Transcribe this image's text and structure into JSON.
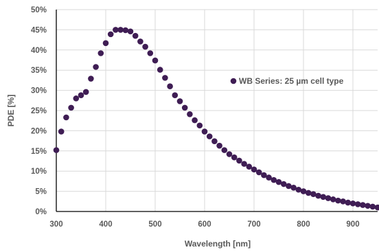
{
  "chart_data": {
    "type": "scatter",
    "xlabel": "Wavelength [nm]",
    "ylabel": "PDE [%]",
    "xlim": [
      300,
      950
    ],
    "ylim": [
      0,
      50
    ],
    "x_ticks": [
      300,
      400,
      500,
      600,
      700,
      800,
      900
    ],
    "x_tick_labels": [
      "300",
      "400",
      "500",
      "600",
      "700",
      "800",
      "900"
    ],
    "y_ticks": [
      0,
      5,
      10,
      15,
      20,
      25,
      30,
      35,
      40,
      45,
      50
    ],
    "y_tick_labels": [
      "0%",
      "5%",
      "10%",
      "15%",
      "20%",
      "25%",
      "30%",
      "35%",
      "40%",
      "45%",
      "50%"
    ],
    "grid": "vertical and horizontal",
    "legend_position": "right-middle",
    "series": [
      {
        "name": "WB Series: 25 µm cell type",
        "color": "#3f1d54",
        "x": [
          300,
          310,
          320,
          330,
          340,
          350,
          360,
          370,
          380,
          390,
          400,
          410,
          420,
          430,
          440,
          450,
          460,
          470,
          480,
          490,
          500,
          510,
          520,
          530,
          540,
          550,
          560,
          570,
          580,
          590,
          600,
          610,
          620,
          630,
          640,
          650,
          660,
          670,
          680,
          690,
          700,
          710,
          720,
          730,
          740,
          750,
          760,
          770,
          780,
          790,
          800,
          810,
          820,
          830,
          840,
          850,
          860,
          870,
          880,
          890,
          900,
          910,
          920,
          930,
          940,
          950
        ],
        "y": [
          15.2,
          19.8,
          23.3,
          25.7,
          28.0,
          28.8,
          29.6,
          32.9,
          35.8,
          39.2,
          41.7,
          43.9,
          45.0,
          45.0,
          44.9,
          44.6,
          43.5,
          42.1,
          40.8,
          39.2,
          37.4,
          35.1,
          33.1,
          31.0,
          28.8,
          27.3,
          25.7,
          24.1,
          22.6,
          21.3,
          19.8,
          18.6,
          17.4,
          16.3,
          15.2,
          14.2,
          13.4,
          12.6,
          11.8,
          11.1,
          10.4,
          9.7,
          9.0,
          8.4,
          7.8,
          7.3,
          6.8,
          6.3,
          5.9,
          5.4,
          5.0,
          4.6,
          4.3,
          3.9,
          3.6,
          3.3,
          3.0,
          2.7,
          2.5,
          2.2,
          2.0,
          1.8,
          1.6,
          1.4,
          1.2,
          1.0
        ]
      }
    ]
  }
}
